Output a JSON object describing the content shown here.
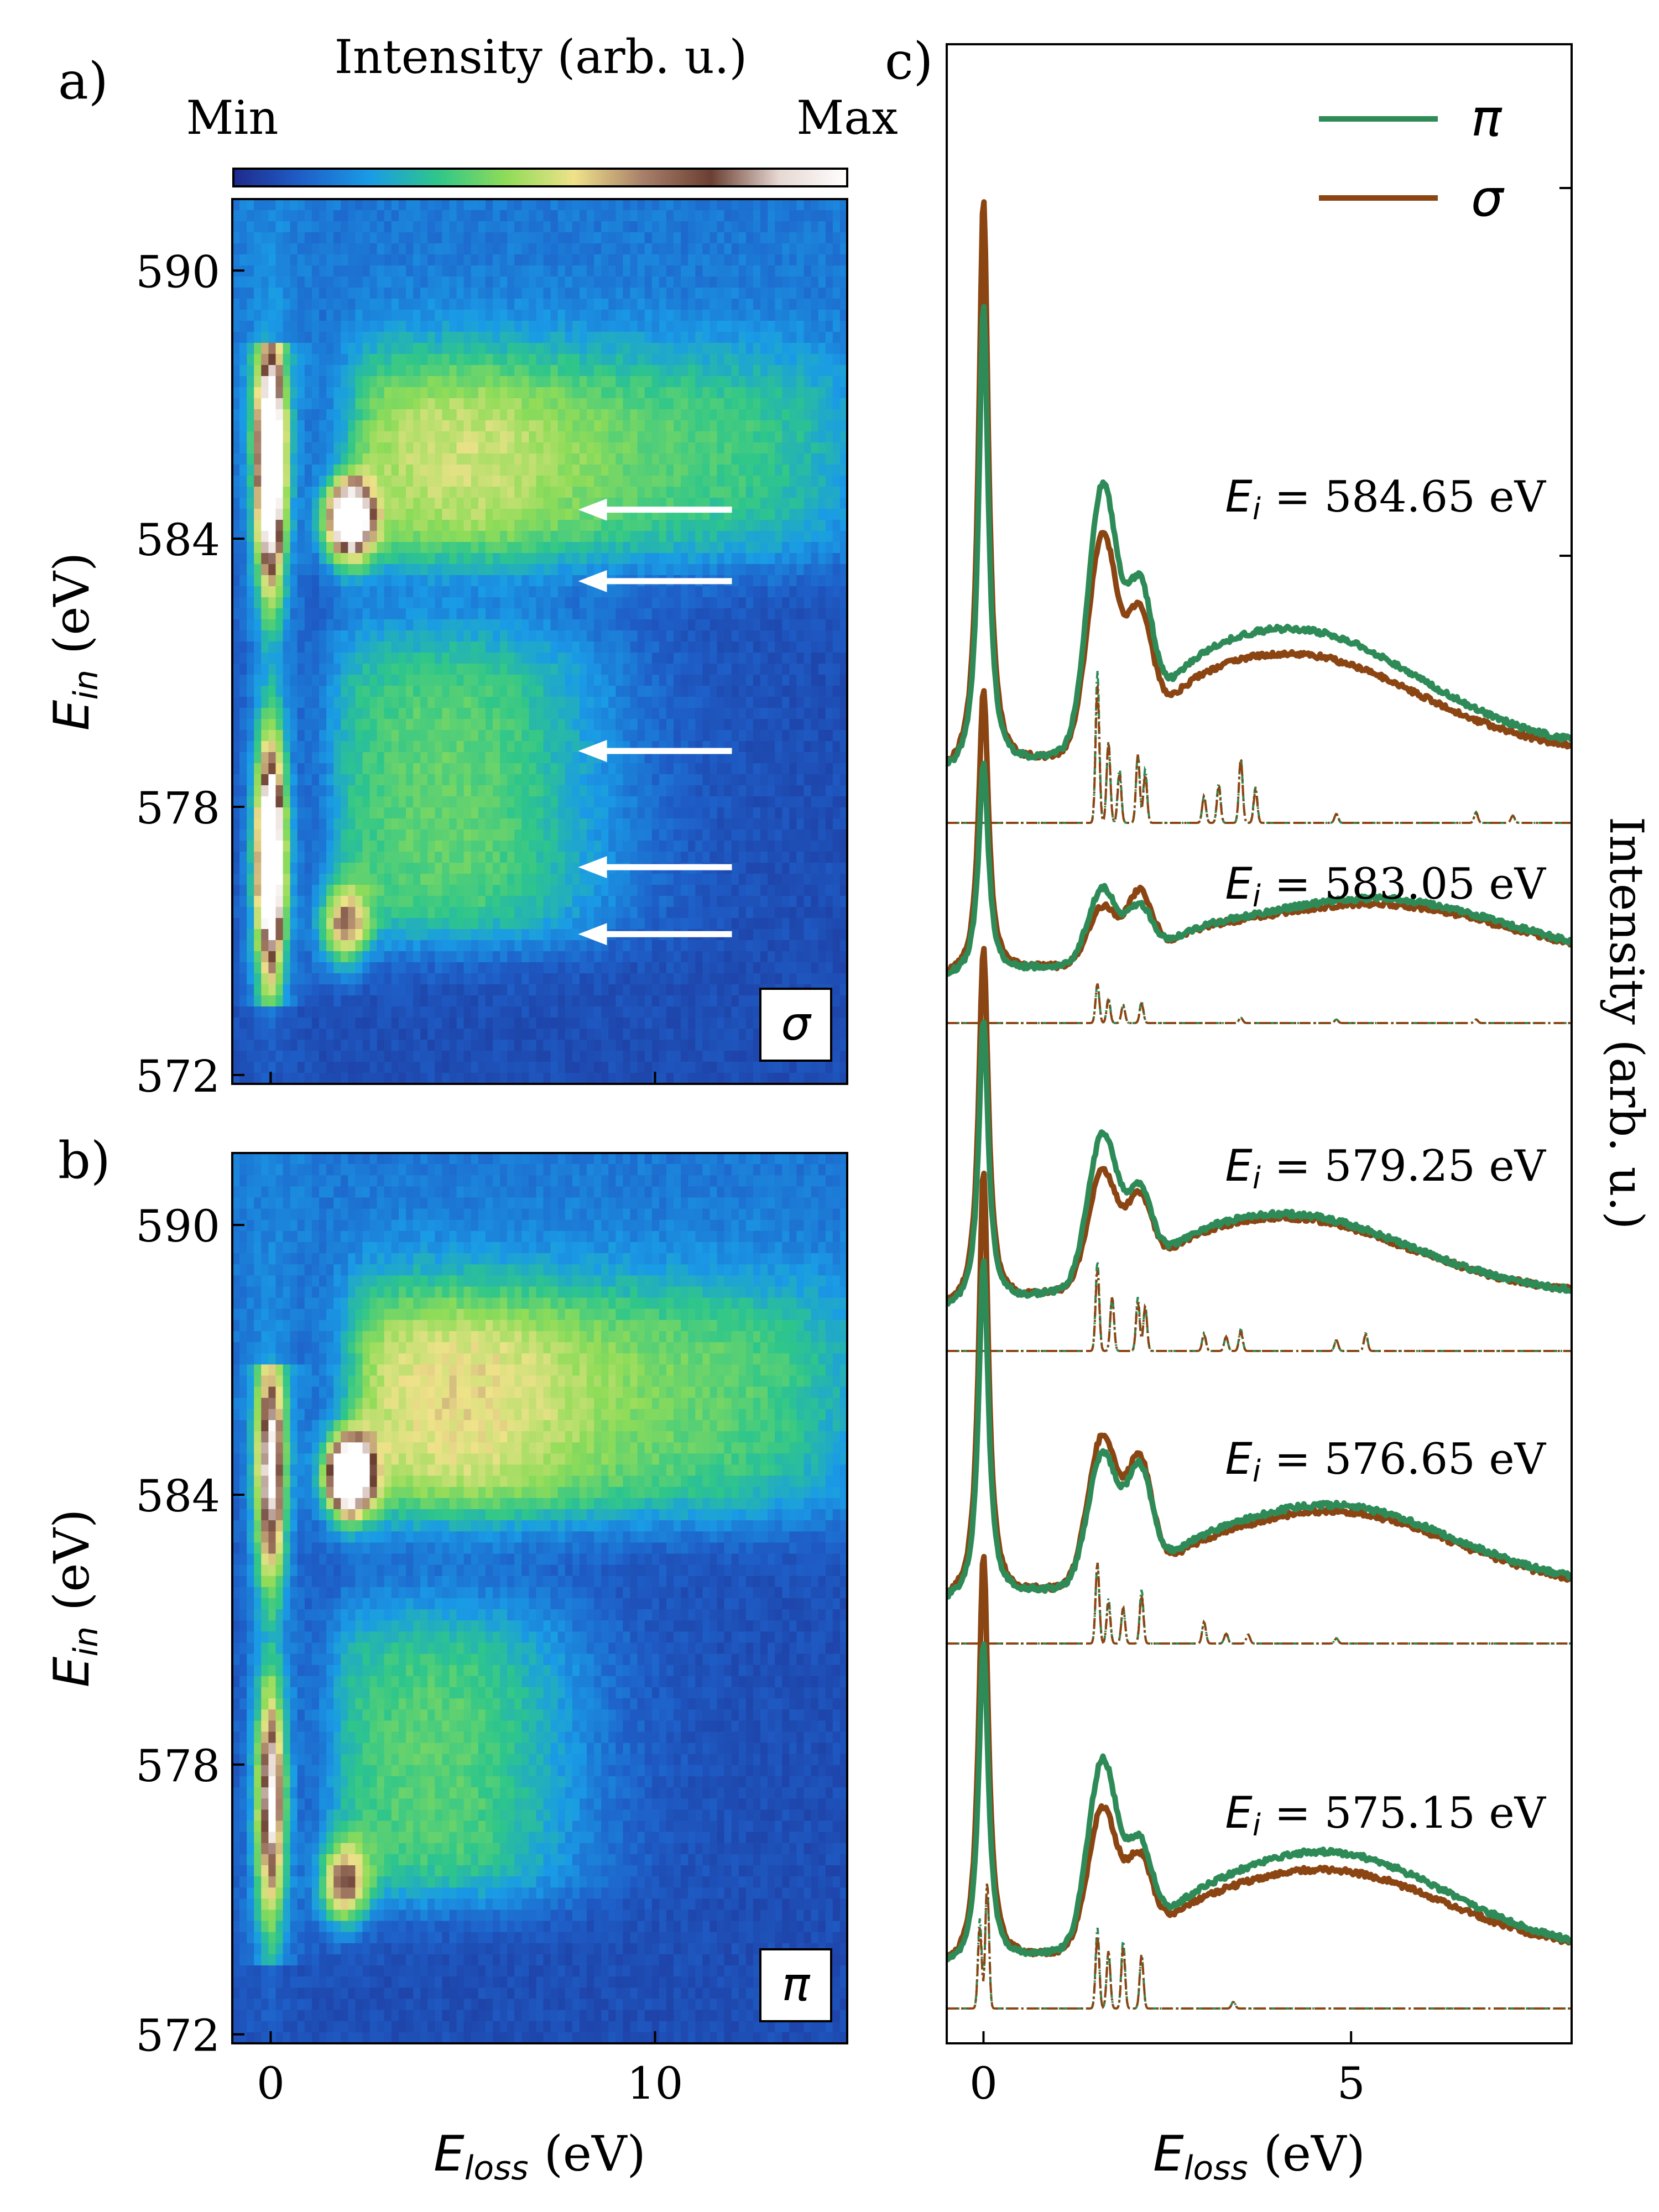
{
  "figure": {
    "panel_labels": [
      "a)",
      "b)",
      "c)"
    ]
  },
  "colorbar": {
    "title": "Intensity (arb. u.)",
    "min_label": "Min",
    "max_label": "Max",
    "stops": [
      "#1f2a8c",
      "#1e5fc8",
      "#1a9be6",
      "#2fc68a",
      "#8fdc58",
      "#efe28a",
      "#a8806a",
      "#6b3f32",
      "#e6d8d2",
      "#ffffff"
    ]
  },
  "colors": {
    "pi": "#2e8b57",
    "sigma": "#8b4513",
    "arrow": "#ffffff"
  },
  "chart_data": [
    {
      "id": "panel-a",
      "type": "heatmap",
      "polarization_label": "σ",
      "xlabel_main": "E",
      "xlabel_sub": "loss",
      "xlabel_unit": " (eV)",
      "ylabel_main": "E",
      "ylabel_sub": "in",
      "ylabel_unit": " (eV)",
      "xlim": [
        -1,
        15
      ],
      "ylim": [
        571.8,
        591.6
      ],
      "xticks": [
        0,
        10
      ],
      "yticks": [
        572,
        578,
        584,
        590
      ],
      "features": [
        {
          "kind": "elastic",
          "ein_range": [
            573.5,
            588.3
          ],
          "centers": [
            576.8,
            585.6
          ],
          "strength": 1.0
        },
        {
          "kind": "dd_excitation_peak",
          "eloss": 2.0,
          "ein": 584.4,
          "strength": 1.0
        },
        {
          "kind": "dd_excitation_peak",
          "eloss": 1.9,
          "ein": 575.3,
          "strength": 0.55
        },
        {
          "kind": "broad_charge_transfer",
          "ein_range": [
            583.5,
            588
          ],
          "eloss_range": [
            2,
            15
          ],
          "strength": 0.6
        },
        {
          "kind": "broad_charge_transfer",
          "ein_range": [
            575,
            582
          ],
          "eloss_range": [
            1.5,
            9
          ],
          "strength": 0.5
        }
      ],
      "arrows_ein": [
        584.65,
        583.05,
        579.25,
        576.65,
        575.15
      ]
    },
    {
      "id": "panel-b",
      "type": "heatmap",
      "polarization_label": "π",
      "xlabel_main": "E",
      "xlabel_sub": "loss",
      "xlabel_unit": " (eV)",
      "ylabel_main": "E",
      "ylabel_sub": "in",
      "ylabel_unit": " (eV)",
      "xlim": [
        -1,
        15
      ],
      "ylim": [
        571.8,
        591.6
      ],
      "xticks": [
        0,
        10
      ],
      "yticks": [
        572,
        578,
        584,
        590
      ],
      "features": [
        {
          "kind": "elastic",
          "ein_range": [
            573.5,
            587
          ],
          "centers": [
            577.2,
            584.5
          ],
          "strength": 0.7
        },
        {
          "kind": "dd_excitation_peak",
          "eloss": 2.0,
          "ein": 584.4,
          "strength": 1.1
        },
        {
          "kind": "dd_excitation_peak",
          "eloss": 1.9,
          "ein": 575.3,
          "strength": 0.6
        },
        {
          "kind": "broad_charge_transfer",
          "ein_range": [
            583.5,
            588.5
          ],
          "eloss_range": [
            2,
            15
          ],
          "strength": 0.65
        },
        {
          "kind": "broad_charge_transfer",
          "ein_range": [
            575,
            581.5
          ],
          "eloss_range": [
            1.5,
            8
          ],
          "strength": 0.5
        }
      ]
    },
    {
      "id": "panel-c",
      "type": "line",
      "xlabel_main": "E",
      "xlabel_sub": "loss",
      "xlabel_unit": " (eV)",
      "ylabel": "Intensity (arb. u.)",
      "xlim": [
        -0.5,
        8
      ],
      "xticks": [
        0,
        5
      ],
      "legend": [
        {
          "symbol": "π",
          "series": "pi"
        },
        {
          "symbol": "σ",
          "series": "sigma"
        }
      ],
      "spectra": [
        {
          "ei_prefix": "E",
          "ei_sub": "i",
          "ei_value": " = 584.65 eV",
          "baseline": 0.0,
          "gap": 0.25,
          "pi": {
            "elastic": 2.6,
            "dd1": 1.45,
            "dd2": 0.75,
            "ct": 0.55,
            "ct_center": 4.3,
            "tail": 0.35
          },
          "sigma": {
            "elastic": 3.2,
            "dd1": 1.2,
            "dd2": 0.65,
            "ct": 0.45,
            "ct_center": 4.3,
            "tail": 0.3
          },
          "calc": {
            "lines": [
              1.55,
              1.7,
              1.85,
              2.1,
              2.2,
              3.0,
              3.2,
              3.5,
              3.7,
              4.8,
              6.7,
              7.2
            ],
            "heights": [
              0.85,
              0.45,
              0.3,
              0.38,
              0.3,
              0.15,
              0.22,
              0.36,
              0.2,
              0.05,
              0.06,
              0.04
            ]
          }
        },
        {
          "ei_prefix": "E",
          "ei_sub": "i",
          "ei_value": " = 583.05 eV",
          "baseline": 1.0,
          "gap": 0.25,
          "pi": {
            "elastic": 1.2,
            "dd1": 0.45,
            "dd2": 0.3,
            "ct": 0.27,
            "ct_center": 5.5,
            "tail": 0.25
          },
          "sigma": {
            "elastic": 1.6,
            "dd1": 0.35,
            "dd2": 0.38,
            "ct": 0.24,
            "ct_center": 5.5,
            "tail": 0.25
          },
          "calc": {
            "lines": [
              1.55,
              1.7,
              1.9,
              2.15,
              3.5,
              4.8,
              6.7
            ],
            "heights": [
              0.22,
              0.14,
              0.1,
              0.12,
              0.03,
              0.02,
              0.02
            ]
          }
        },
        {
          "ei_prefix": "E",
          "ei_sub": "i",
          "ei_value": " = 579.25 eV",
          "baseline": 2.0,
          "gap": 0.22,
          "pi": {
            "elastic": 1.6,
            "dd1": 0.85,
            "dd2": 0.45,
            "ct": 0.38,
            "ct_center": 4.2,
            "tail": 0.2
          },
          "sigma": {
            "elastic": 2.0,
            "dd1": 0.65,
            "dd2": 0.42,
            "ct": 0.36,
            "ct_center": 4.2,
            "tail": 0.2
          },
          "calc": {
            "lines": [
              1.55,
              1.75,
              2.1,
              2.2,
              3.0,
              3.3,
              3.5,
              4.8,
              5.2
            ],
            "heights": [
              0.5,
              0.3,
              0.3,
              0.25,
              0.1,
              0.08,
              0.12,
              0.06,
              0.1
            ]
          }
        },
        {
          "ei_prefix": "E",
          "ei_sub": "i",
          "ei_value": " = 576.65 eV",
          "baseline": 3.0,
          "gap": 0.22,
          "pi": {
            "elastic": 1.9,
            "dd1": 0.75,
            "dd2": 0.6,
            "ct": 0.4,
            "ct_center": 4.8,
            "tail": 0.2
          },
          "sigma": {
            "elastic": 2.4,
            "dd1": 0.85,
            "dd2": 0.65,
            "ct": 0.38,
            "ct_center": 4.8,
            "tail": 0.18
          },
          "calc": {
            "lines": [
              1.55,
              1.7,
              1.9,
              2.15,
              3.0,
              3.3,
              3.6,
              4.8
            ],
            "heights": [
              0.45,
              0.25,
              0.2,
              0.3,
              0.12,
              0.06,
              0.05,
              0.03
            ]
          }
        },
        {
          "ei_prefix": "E",
          "ei_sub": "i",
          "ei_value": " = 575.15 eV",
          "baseline": 4.0,
          "gap": 0.22,
          "pi": {
            "elastic": 1.8,
            "dd1": 1.05,
            "dd2": 0.5,
            "ct": 0.5,
            "ct_center": 4.7,
            "tail": 0.2
          },
          "sigma": {
            "elastic": 2.3,
            "dd1": 0.8,
            "dd2": 0.45,
            "ct": 0.4,
            "ct_center": 4.7,
            "tail": 0.2
          },
          "calc": {
            "lines": [
              -0.05,
              0.05,
              1.55,
              1.7,
              1.9,
              2.15,
              3.4
            ],
            "heights": [
              0.5,
              0.7,
              0.45,
              0.32,
              0.38,
              0.3,
              0.04
            ]
          }
        }
      ]
    }
  ]
}
